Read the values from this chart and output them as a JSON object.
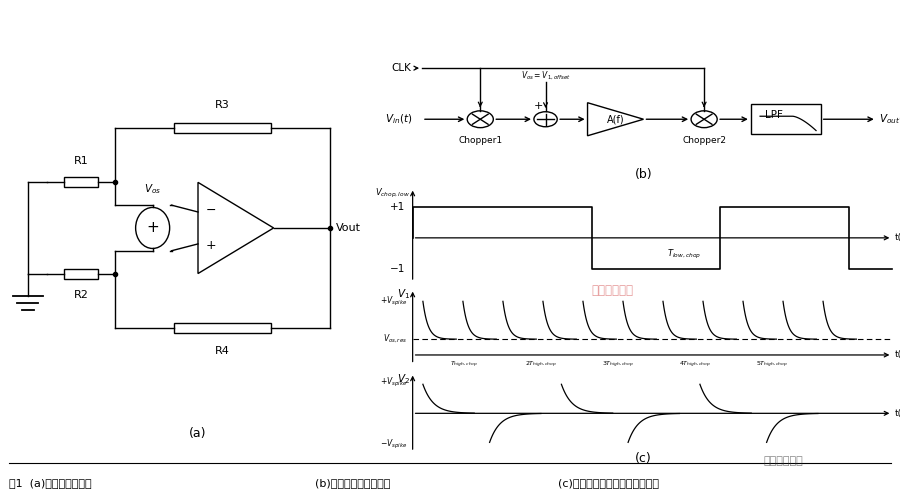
{
  "bg_color": "#ffffff",
  "fig_width": 9.0,
  "fig_height": 5.01,
  "caption_left": "图1  (a)跨阻滤波器模型",
  "caption_mid": "(b)斩波稳定技术原理图",
  "caption_right": "(c)嵌套斩波消除残余失调原理图",
  "watermark": "电子产品世界",
  "label_a": "(a)",
  "label_b": "(b)",
  "label_c": "(c)"
}
